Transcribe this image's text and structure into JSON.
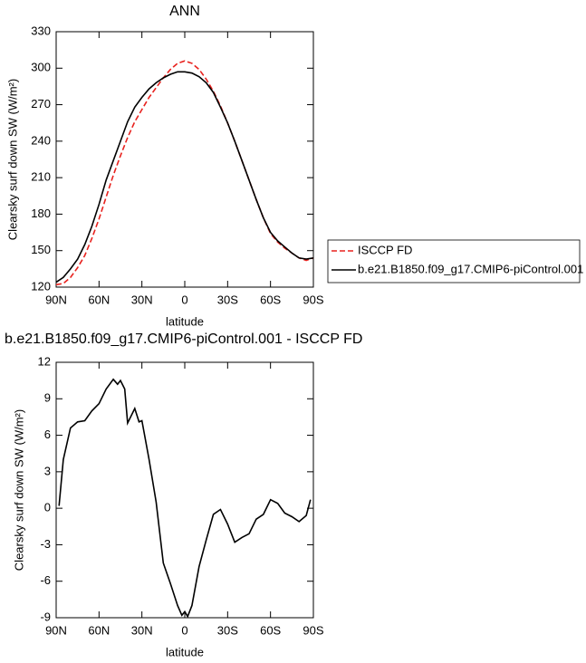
{
  "chart_data": [
    {
      "type": "line",
      "title": "ANN",
      "xlabel": "latitude",
      "ylabel": "Clearsky surf down SW (W/m²)",
      "x": [
        90,
        85,
        80,
        75,
        70,
        65,
        60,
        55,
        50,
        45,
        40,
        35,
        30,
        25,
        20,
        15,
        10,
        5,
        0,
        -5,
        -10,
        -15,
        -20,
        -25,
        -30,
        -35,
        -40,
        -45,
        -50,
        -55,
        -60,
        -65,
        -70,
        -75,
        -80,
        -85,
        -90
      ],
      "series": [
        {
          "name": "ISCCP FD",
          "color": "#e8221e",
          "dash": true,
          "values": [
            122,
            123,
            128,
            136,
            146,
            160,
            176,
            194,
            212,
            228,
            243,
            256,
            266,
            276,
            284,
            292,
            299,
            304,
            306,
            304,
            299,
            291,
            281,
            269,
            255,
            240,
            224,
            208,
            192,
            177,
            164,
            157,
            152,
            148,
            144,
            142,
            144
          ]
        },
        {
          "name": "b.e21.B1850.f09_g17.CMIP6-piControl.001",
          "color": "#000000",
          "dash": false,
          "values": [
            124,
            128,
            135,
            143,
            155,
            170,
            188,
            208,
            224,
            240,
            256,
            268,
            276,
            283,
            288,
            292,
            295,
            297,
            297,
            296,
            293,
            288,
            280,
            268,
            255,
            240,
            224,
            208,
            192,
            177,
            165,
            158,
            153,
            148,
            144,
            143,
            144
          ]
        }
      ],
      "xlim": [
        90,
        -90
      ],
      "xticks": [
        {
          "value": 90,
          "label": "90N"
        },
        {
          "value": 60,
          "label": "60N"
        },
        {
          "value": 30,
          "label": "30N"
        },
        0,
        {
          "value": -30,
          "label": "30S"
        },
        {
          "value": -60,
          "label": "60S"
        },
        {
          "value": -90,
          "label": "90S"
        }
      ],
      "ylim": [
        120,
        330
      ],
      "yticks": [
        120,
        150,
        180,
        210,
        240,
        270,
        300,
        330
      ],
      "legend": "right"
    },
    {
      "type": "line",
      "title": "b.e21.B1850.f09_g17.CMIP6-piControl.001 - ISCCP FD",
      "xlabel": "latitude",
      "ylabel": "Clearsky surf down SW (W/m²)",
      "x": [
        88,
        85,
        80,
        75,
        70,
        65,
        60,
        55,
        50,
        47,
        45,
        42,
        40,
        35,
        32,
        30,
        25,
        20,
        15,
        10,
        5,
        2,
        0,
        -2,
        -5,
        -10,
        -15,
        -20,
        -25,
        -30,
        -35,
        -40,
        -45,
        -50,
        -55,
        -60,
        -65,
        -70,
        -75,
        -80,
        -85,
        -88
      ],
      "series": [
        {
          "color": "#000000",
          "dash": false,
          "values": [
            0.2,
            4.0,
            6.6,
            7.1,
            7.2,
            8.0,
            8.6,
            9.8,
            10.6,
            10.2,
            10.5,
            9.8,
            7.0,
            8.2,
            7.1,
            7.2,
            4.0,
            0.5,
            -4.5,
            -6.2,
            -8.0,
            -8.8,
            -8.5,
            -8.9,
            -8.0,
            -4.8,
            -2.6,
            -0.5,
            -0.1,
            -1.3,
            -2.8,
            -2.4,
            -2.1,
            -0.9,
            -0.5,
            0.7,
            0.4,
            -0.4,
            -0.7,
            -1.1,
            -0.6,
            0.7
          ]
        }
      ],
      "xlim": [
        90,
        -90
      ],
      "xticks": [
        {
          "value": 90,
          "label": "90N"
        },
        {
          "value": 60,
          "label": "60N"
        },
        {
          "value": 30,
          "label": "30N"
        },
        0,
        {
          "value": -30,
          "label": "30S"
        },
        {
          "value": -60,
          "label": "60S"
        },
        {
          "value": -90,
          "label": "90S"
        }
      ],
      "ylim": [
        -9,
        12
      ],
      "yticks": [
        -9,
        -6,
        -3,
        0,
        3,
        6,
        9,
        12
      ]
    }
  ]
}
